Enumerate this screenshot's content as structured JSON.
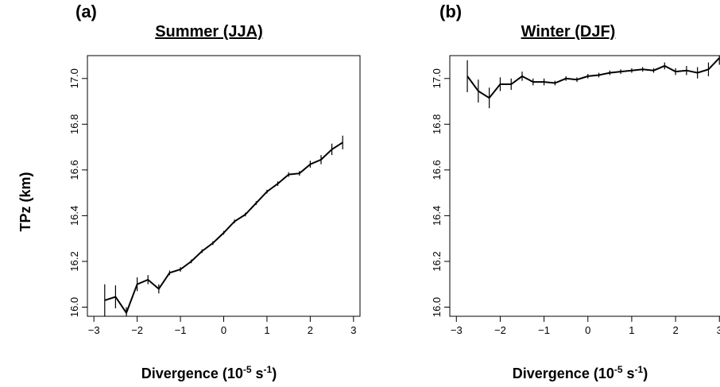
{
  "chart_data": [
    {
      "type": "line",
      "panel_label": "(a)",
      "title": "Summer (JJA)",
      "xlabel_main": "Divergence (10",
      "xlabel_exp": "-5",
      "xlabel_unit": " s",
      "xlabel_unit_exp": "-1",
      "xlabel_close": ")",
      "ylabel": "TPz (km)",
      "xlim": [
        -3.15,
        3.15
      ],
      "ylim": [
        15.96,
        17.1
      ],
      "xticks": [
        -3,
        -2,
        -1,
        0,
        1,
        2,
        3
      ],
      "xtick_labels": [
        "−3",
        "−2",
        "−1",
        "0",
        "1",
        "2",
        "3"
      ],
      "yticks": [
        16.0,
        16.2,
        16.4,
        16.6,
        16.8,
        17.0
      ],
      "ytick_labels": [
        "16.0",
        "16.2",
        "16.4",
        "16.6",
        "16.8",
        "17.0"
      ],
      "grid": false,
      "series": [
        {
          "x": [
            -2.75,
            -2.5,
            -2.25,
            -2.0,
            -1.75,
            -1.5,
            -1.25,
            -1.0,
            -0.75,
            -0.5,
            -0.25,
            0.0,
            0.25,
            0.5,
            0.75,
            1.0,
            1.25,
            1.5,
            1.75,
            2.0,
            2.25,
            2.5,
            2.75
          ],
          "y": [
            16.03,
            16.045,
            15.975,
            16.1,
            16.12,
            16.08,
            16.15,
            16.165,
            16.2,
            16.245,
            16.28,
            16.325,
            16.375,
            16.405,
            16.455,
            16.505,
            16.54,
            16.58,
            16.585,
            16.625,
            16.645,
            16.69,
            16.72
          ],
          "err": [
            0.07,
            0.05,
            0.025,
            0.03,
            0.02,
            0.02,
            0.01,
            0.01,
            0.008,
            0.008,
            0.008,
            0.008,
            0.008,
            0.008,
            0.008,
            0.008,
            0.01,
            0.01,
            0.01,
            0.015,
            0.02,
            0.025,
            0.03
          ]
        }
      ]
    },
    {
      "type": "line",
      "panel_label": "(b)",
      "title": "Winter (DJF)",
      "xlabel_main": "Divergence (10",
      "xlabel_exp": "-5",
      "xlabel_unit": " s",
      "xlabel_unit_exp": "-1",
      "xlabel_close": ")",
      "ylabel": "",
      "xlim": [
        -3.15,
        3.05
      ],
      "ylim": [
        15.96,
        17.1
      ],
      "xticks": [
        -3,
        -2,
        -1,
        0,
        1,
        2,
        3
      ],
      "xtick_labels": [
        "−3",
        "−2",
        "−1",
        "0",
        "1",
        "2",
        "3"
      ],
      "yticks": [
        16.0,
        16.2,
        16.4,
        16.6,
        16.8,
        17.0
      ],
      "ytick_labels": [
        "16.0",
        "16.2",
        "16.4",
        "16.6",
        "16.8",
        "17.0"
      ],
      "grid": false,
      "series": [
        {
          "x": [
            -2.75,
            -2.5,
            -2.25,
            -2.0,
            -1.75,
            -1.5,
            -1.25,
            -1.0,
            -0.75,
            -0.5,
            -0.25,
            0.0,
            0.25,
            0.5,
            0.75,
            1.0,
            1.25,
            1.5,
            1.75,
            2.0,
            2.25,
            2.5,
            2.75,
            3.0
          ],
          "y": [
            17.01,
            16.945,
            16.915,
            16.975,
            16.975,
            17.01,
            16.985,
            16.985,
            16.98,
            17.0,
            16.995,
            17.01,
            17.015,
            17.025,
            17.03,
            17.035,
            17.04,
            17.035,
            17.055,
            17.03,
            17.035,
            17.025,
            17.04,
            17.09
          ],
          "err": [
            0.07,
            0.05,
            0.045,
            0.03,
            0.025,
            0.02,
            0.015,
            0.015,
            0.01,
            0.01,
            0.01,
            0.01,
            0.01,
            0.01,
            0.01,
            0.01,
            0.01,
            0.01,
            0.015,
            0.015,
            0.02,
            0.025,
            0.03,
            0.03
          ]
        }
      ]
    }
  ]
}
